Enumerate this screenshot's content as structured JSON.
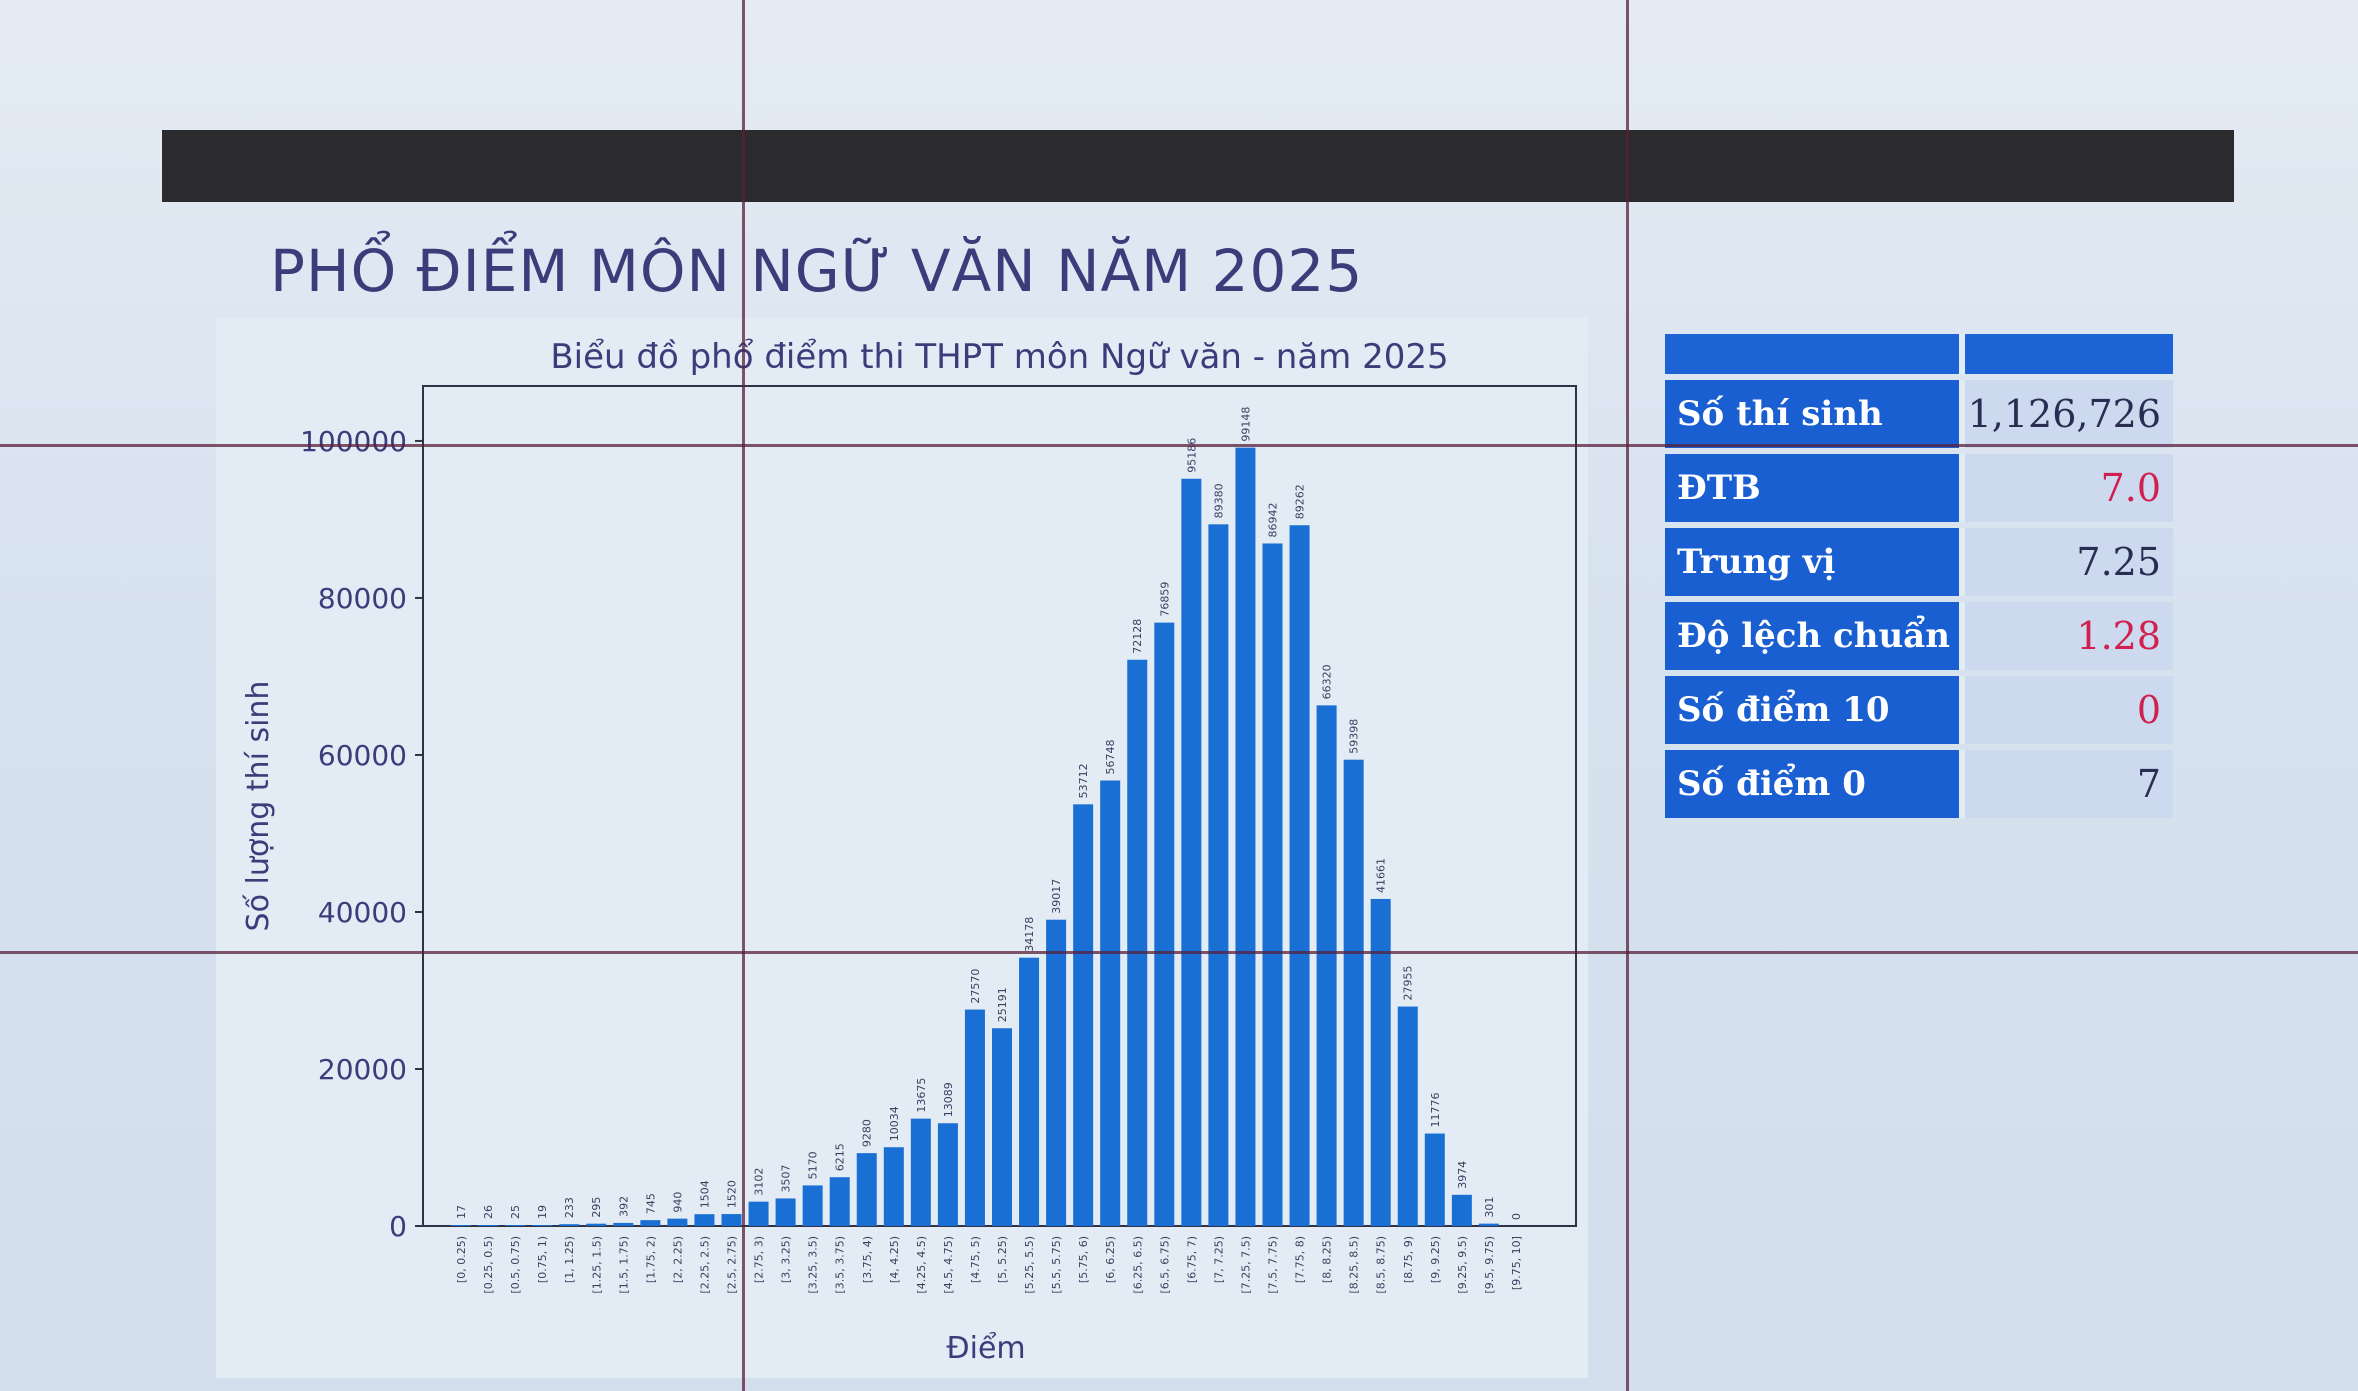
{
  "page_title": "PHỔ ĐIỂM MÔN NGỮ VĂN NĂM 2025",
  "colors": {
    "bar": "#1a6fd4",
    "label_bg": "#1a5fd1",
    "value_red": "#d0204f"
  },
  "stats": {
    "rows": [
      {
        "label": "Số thí sinh",
        "value": "1,126,726",
        "accent": false
      },
      {
        "label": "ĐTB",
        "value": "7.0",
        "accent": true
      },
      {
        "label": "Trung vị",
        "value": "7.25",
        "accent": false
      },
      {
        "label": "Độ lệch chuẩn",
        "value": "1.28",
        "accent": true
      },
      {
        "label": "Số điểm 10",
        "value": "0",
        "accent": true
      },
      {
        "label": "Số điểm 0",
        "value": "7",
        "accent": false
      }
    ]
  },
  "chart_data": {
    "type": "bar",
    "title": "Biểu đồ phổ điểm thi THPT môn Ngữ văn - năm 2025",
    "xlabel": "Điểm",
    "ylabel": "Số lượng thí sinh",
    "ylim": [
      0,
      107000
    ],
    "yticks": [
      0,
      20000,
      40000,
      60000,
      80000,
      100000
    ],
    "grid": false,
    "categories": [
      "[0, 0.25)",
      "[0.25, 0.5)",
      "[0.5, 0.75)",
      "[0.75, 1)",
      "[1, 1.25)",
      "[1.25, 1.5)",
      "[1.5, 1.75)",
      "[1.75, 2)",
      "[2, 2.25)",
      "[2.25, 2.5)",
      "[2.5, 2.75)",
      "[2.75, 3)",
      "[3, 3.25)",
      "[3.25, 3.5)",
      "[3.5, 3.75)",
      "[3.75, 4)",
      "[4, 4.25)",
      "[4.25, 4.5)",
      "[4.5, 4.75)",
      "[4.75, 5)",
      "[5, 5.25)",
      "[5.25, 5.5)",
      "[5.5, 5.75)",
      "[5.75, 6)",
      "[6, 6.25)",
      "[6.25, 6.5)",
      "[6.5, 6.75)",
      "[6.75, 7)",
      "[7, 7.25)",
      "[7.25, 7.5)",
      "[7.5, 7.75)",
      "[7.75, 8)",
      "[8, 8.25)",
      "[8.25, 8.5)",
      "[8.5, 8.75)",
      "[8.75, 9)",
      "[9, 9.25)",
      "[9.25, 9.5)",
      "[9.5, 9.75)",
      "[9.75, 10]"
    ],
    "values": [
      17,
      26,
      25,
      19,
      233,
      295,
      392,
      745,
      940,
      1504,
      1520,
      3102,
      3507,
      5170,
      6215,
      9280,
      10034,
      13675,
      13089,
      27570,
      25191,
      34178,
      39017,
      53712,
      56748,
      72128,
      76859,
      95186,
      89380,
      99148,
      86942,
      89262,
      66320,
      59398,
      41661,
      27955,
      11776,
      3974,
      301,
      0
    ]
  }
}
